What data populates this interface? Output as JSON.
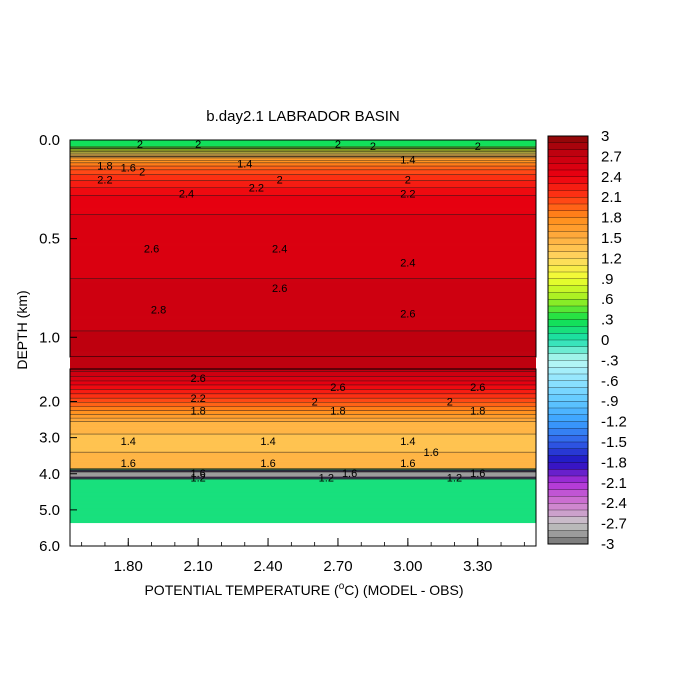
{
  "chart_data": {
    "type": "heatmap",
    "title": "b.day2.1 LABRADOR BASIN",
    "xlabel_main": "POTENTIAL TEMPERATURE (",
    "xlabel_unit": "C) (MODEL - OBS)",
    "xlabel_degree": "o",
    "ylabel": "DEPTH (km)",
    "x_tick_labels": [
      "1.80",
      "2.10",
      "2.40",
      "2.70",
      "3.00",
      "3.30"
    ],
    "x_tick_values": [
      1.8,
      2.1,
      2.4,
      2.7,
      3.0,
      3.3
    ],
    "xlim": [
      1.55,
      3.55
    ],
    "upper_panel": {
      "y_tick_labels": [
        "0.0",
        "0.5",
        "1.0"
      ],
      "y_tick_values": [
        0.0,
        0.5,
        1.0
      ],
      "ylim": [
        0.0,
        1.1
      ]
    },
    "lower_panel": {
      "y_tick_labels": [
        "2.0",
        "3.0",
        "4.0",
        "5.0",
        "6.0"
      ],
      "y_tick_values": [
        2.0,
        3.0,
        4.0,
        5.0,
        6.0
      ],
      "ylim": [
        1.1,
        6.0
      ]
    },
    "colorbar": {
      "labels": [
        "3",
        "2.7",
        "2.4",
        "2.1",
        "1.8",
        "1.5",
        "1.2",
        ".9",
        ".6",
        ".3",
        "0",
        "-.3",
        "-.6",
        "-.9",
        "-1.2",
        "-1.5",
        "-1.8",
        "-2.1",
        "-2.4",
        "-2.7",
        "-3"
      ],
      "min": -3.0,
      "max": 3.0
    },
    "depth_profile": [
      {
        "depth": 0.0,
        "value": 0.2
      },
      {
        "depth": 0.03,
        "value": 0.25
      },
      {
        "depth": 0.06,
        "value": 1.0
      },
      {
        "depth": 0.09,
        "value": 1.6
      },
      {
        "depth": 0.12,
        "value": 1.85
      },
      {
        "depth": 0.16,
        "value": 2.05
      },
      {
        "depth": 0.22,
        "value": 2.25
      },
      {
        "depth": 0.3,
        "value": 2.45
      },
      {
        "depth": 0.45,
        "value": 2.55
      },
      {
        "depth": 0.7,
        "value": 2.6
      },
      {
        "depth": 1.1,
        "value": 2.75
      },
      {
        "depth": 1.3,
        "value": 2.6
      },
      {
        "depth": 1.6,
        "value": 2.35
      },
      {
        "depth": 1.9,
        "value": 2.1
      },
      {
        "depth": 2.2,
        "value": 1.85
      },
      {
        "depth": 2.6,
        "value": 1.45
      },
      {
        "depth": 3.2,
        "value": 1.35
      },
      {
        "depth": 3.6,
        "value": 1.45
      },
      {
        "depth": 3.85,
        "value": 1.45
      },
      {
        "depth": 3.95,
        "value": -2.8
      },
      {
        "depth": 4.08,
        "value": -2.9
      },
      {
        "depth": 4.15,
        "value": 0.1
      },
      {
        "depth": 5.35,
        "value": 0.1
      },
      {
        "depth": 5.4,
        "value": null
      }
    ],
    "contour_labels": [
      {
        "text": "2",
        "x": 1.85,
        "depth": 0.02
      },
      {
        "text": "2",
        "x": 2.1,
        "depth": 0.02
      },
      {
        "text": "2",
        "x": 2.7,
        "depth": 0.02
      },
      {
        "text": "2",
        "x": 2.85,
        "depth": 0.03
      },
      {
        "text": "2",
        "x": 3.3,
        "depth": 0.03
      },
      {
        "text": "1.8",
        "x": 1.7,
        "depth": 0.13
      },
      {
        "text": "1.6",
        "x": 1.8,
        "depth": 0.14
      },
      {
        "text": "2",
        "x": 1.86,
        "depth": 0.16
      },
      {
        "text": "1.4",
        "x": 2.3,
        "depth": 0.12
      },
      {
        "text": "2",
        "x": 2.45,
        "depth": 0.2
      },
      {
        "text": "1.4",
        "x": 3.0,
        "depth": 0.1
      },
      {
        "text": "2",
        "x": 3.0,
        "depth": 0.2
      },
      {
        "text": "2.2",
        "x": 1.7,
        "depth": 0.2
      },
      {
        "text": "2.2",
        "x": 2.35,
        "depth": 0.24
      },
      {
        "text": "2.2",
        "x": 3.0,
        "depth": 0.27
      },
      {
        "text": "2.4",
        "x": 2.05,
        "depth": 0.27
      },
      {
        "text": "2.6",
        "x": 1.9,
        "depth": 0.55
      },
      {
        "text": "2.4",
        "x": 2.45,
        "depth": 0.55
      },
      {
        "text": "2.4",
        "x": 3.0,
        "depth": 0.62
      },
      {
        "text": "2.6",
        "x": 2.45,
        "depth": 0.75
      },
      {
        "text": "2.8",
        "x": 1.93,
        "depth": 0.86
      },
      {
        "text": "2.6",
        "x": 3.0,
        "depth": 0.88
      },
      {
        "text": "2.6",
        "x": 2.1,
        "depth": 1.35
      },
      {
        "text": "2.6",
        "x": 2.7,
        "depth": 1.6
      },
      {
        "text": "2.6",
        "x": 3.3,
        "depth": 1.6
      },
      {
        "text": "2.2",
        "x": 2.1,
        "depth": 1.9
      },
      {
        "text": "2",
        "x": 2.6,
        "depth": 2.0
      },
      {
        "text": "2",
        "x": 3.18,
        "depth": 2.0
      },
      {
        "text": "1.8",
        "x": 2.1,
        "depth": 2.25
      },
      {
        "text": "1.8",
        "x": 2.7,
        "depth": 2.25
      },
      {
        "text": "1.8",
        "x": 3.3,
        "depth": 2.25
      },
      {
        "text": "1.4",
        "x": 1.8,
        "depth": 3.1
      },
      {
        "text": "1.4",
        "x": 2.4,
        "depth": 3.1
      },
      {
        "text": "1.4",
        "x": 3.0,
        "depth": 3.1
      },
      {
        "text": "1.6",
        "x": 3.1,
        "depth": 3.4
      },
      {
        "text": "1.6",
        "x": 1.8,
        "depth": 3.7
      },
      {
        "text": "1.6",
        "x": 2.4,
        "depth": 3.7
      },
      {
        "text": "1.6",
        "x": 3.0,
        "depth": 3.7
      },
      {
        "text": "1.6",
        "x": 2.1,
        "depth": 3.98
      },
      {
        "text": "1.6",
        "x": 2.75,
        "depth": 3.98
      },
      {
        "text": "1.6",
        "x": 3.3,
        "depth": 3.98
      },
      {
        "text": "1.2",
        "x": 2.1,
        "depth": 4.1
      },
      {
        "text": "1.2",
        "x": 2.65,
        "depth": 4.1
      },
      {
        "text": "1.2",
        "x": 3.2,
        "depth": 4.1
      }
    ]
  }
}
